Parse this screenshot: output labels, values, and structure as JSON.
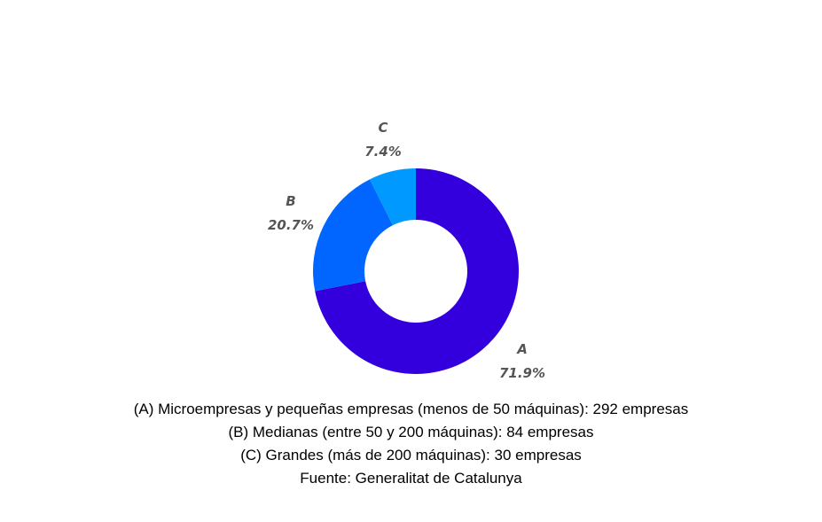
{
  "chart_data": {
    "type": "pie",
    "variant": "donut",
    "title": "",
    "categories": [
      "A",
      "B",
      "C"
    ],
    "values": [
      71.9,
      20.7,
      7.4
    ],
    "counts": [
      292,
      84,
      30
    ],
    "labels": [
      "71.9%",
      "20.7%",
      "7.4%"
    ],
    "colors": [
      "#3300dd",
      "#0066ff",
      "#0099ff"
    ],
    "start_angle": "top",
    "direction": "clockwise",
    "legend": false
  },
  "slices": [
    {
      "letter": "A",
      "pct": "71.9%"
    },
    {
      "letter": "B",
      "pct": "20.7%"
    },
    {
      "letter": "C",
      "pct": "7.4%"
    }
  ],
  "caption": {
    "lines": [
      "(A) Microempresas y pequeñas empresas (menos de 50 máquinas): 292 empresas",
      "(B) Medianas (entre 50 y 200 máquinas): 84 empresas",
      "(C) Grandes (más de 200 máquinas): 30 empresas",
      "Fuente: Generalitat de Catalunya"
    ]
  }
}
